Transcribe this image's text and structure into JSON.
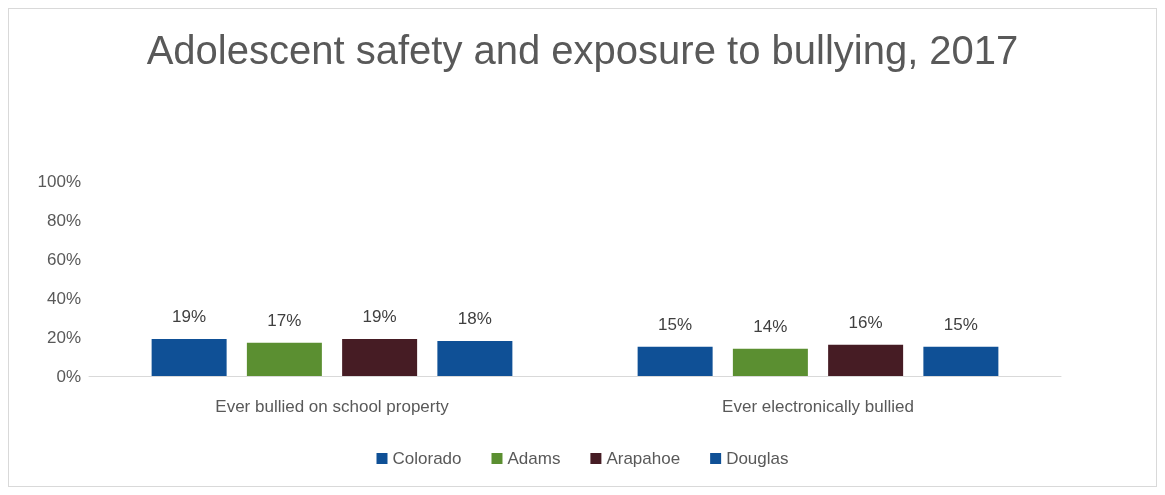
{
  "chart_data": {
    "type": "bar",
    "title": "Adolescent safety and exposure to bullying, 2017",
    "categories": [
      "Ever bullied on school property",
      "Ever electronically bullied"
    ],
    "series": [
      {
        "name": "Colorado",
        "color": "#0f5096",
        "values": [
          19,
          15
        ],
        "value_labels": [
          "19%",
          "15%"
        ]
      },
      {
        "name": "Adams",
        "color": "#5b8f31",
        "values": [
          17,
          14
        ],
        "value_labels": [
          "17%",
          "14%"
        ]
      },
      {
        "name": "Arapahoe",
        "color": "#461c24",
        "values": [
          19,
          16
        ],
        "value_labels": [
          "19%",
          "16%"
        ]
      },
      {
        "name": "Douglas",
        "color": "#0f5096",
        "values": [
          18,
          15
        ],
        "value_labels": [
          "18%",
          "15%"
        ]
      }
    ],
    "ylim": [
      0,
      100
    ],
    "yticks": [
      {
        "value": 0,
        "label": "0%"
      },
      {
        "value": 20,
        "label": "20%"
      },
      {
        "value": 40,
        "label": "40%"
      },
      {
        "value": 60,
        "label": "60%"
      },
      {
        "value": 80,
        "label": "80%"
      },
      {
        "value": 100,
        "label": "100%"
      }
    ],
    "grid": false,
    "legend": "bottom"
  }
}
